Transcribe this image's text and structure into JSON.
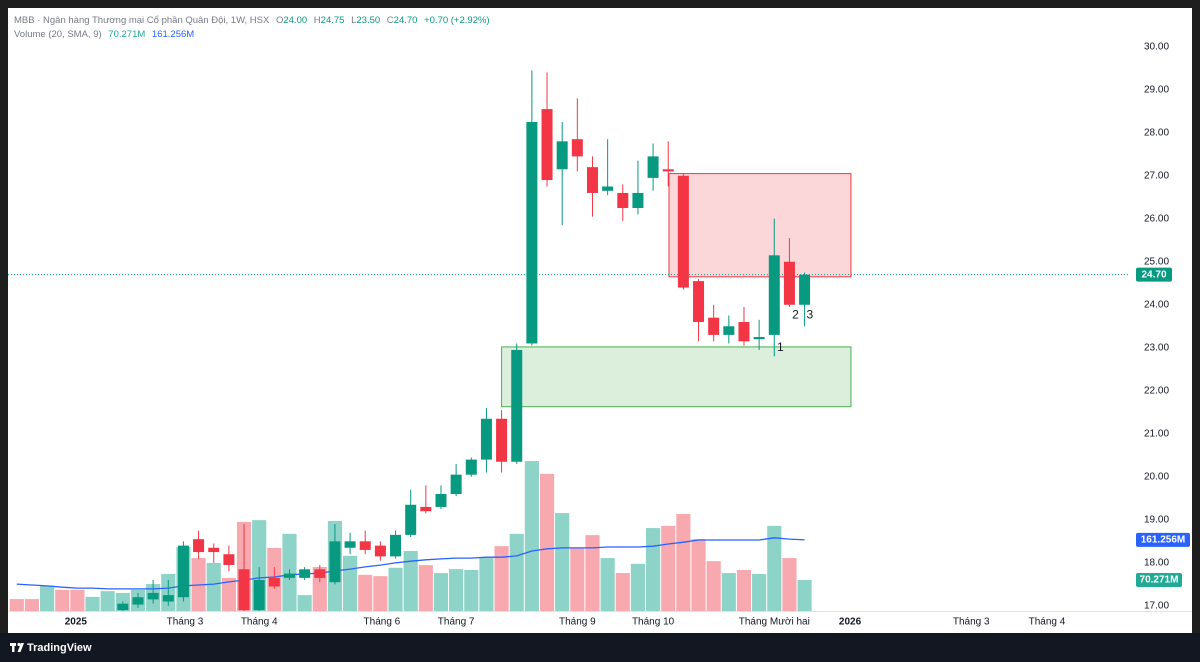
{
  "header": {
    "title": "MBB · Ngân hàng Thương mại Cổ phần Quân Đội, 1W, HSX",
    "ohlc": [
      {
        "key": "O",
        "value": "24.00"
      },
      {
        "key": "H",
        "value": "24.75"
      },
      {
        "key": "L",
        "value": "23.50"
      },
      {
        "key": "C",
        "value": "24.70"
      }
    ],
    "change": "+0.70 (+2.92%)",
    "volume_title": "Volume (20, SMA, 9)"
  },
  "chart_data": {
    "type": "candlestick",
    "x": [
      -1,
      0,
      1,
      2,
      3,
      4,
      5,
      6,
      7,
      8,
      9,
      10,
      11,
      12,
      13,
      14,
      15,
      16,
      17,
      18,
      19,
      20,
      21,
      22,
      23,
      24,
      25,
      26,
      27,
      28,
      29,
      30,
      31,
      32,
      33,
      34,
      35,
      36,
      37,
      38,
      39,
      40,
      41,
      42,
      43,
      44,
      45,
      46,
      47,
      48,
      49,
      50,
      51
    ],
    "open": [
      null,
      null,
      null,
      null,
      null,
      null,
      null,
      16.9,
      17.03,
      17.15,
      17.1,
      17.2,
      18.55,
      18.35,
      18.2,
      17.85,
      16.9,
      17.65,
      17.65,
      17.65,
      17.85,
      17.55,
      18.35,
      18.5,
      18.4,
      18.15,
      18.65,
      19.3,
      19.3,
      19.6,
      20.05,
      20.4,
      21.35,
      20.35,
      23.1,
      28.55,
      27.15,
      27.85,
      27.2,
      26.65,
      26.6,
      26.25,
      26.95,
      27.15,
      27.0,
      24.55,
      23.7,
      23.3,
      23.6,
      23.2,
      23.3,
      25.0,
      24.0
    ],
    "high": [
      null,
      null,
      null,
      null,
      null,
      null,
      null,
      17.1,
      17.3,
      17.6,
      17.6,
      18.5,
      18.75,
      18.45,
      18.4,
      18.9,
      17.9,
      17.9,
      17.85,
      17.9,
      17.95,
      18.9,
      18.7,
      18.75,
      18.5,
      18.75,
      19.7,
      19.8,
      19.8,
      20.3,
      20.45,
      21.6,
      21.55,
      23.1,
      29.45,
      29.4,
      28.25,
      28.8,
      27.45,
      27.85,
      26.8,
      27.35,
      27.75,
      27.8,
      27.05,
      24.6,
      24.0,
      23.75,
      23.95,
      23.65,
      26.0,
      25.55,
      24.75
    ],
    "low": [
      null,
      null,
      null,
      null,
      null,
      null,
      null,
      16.85,
      16.95,
      17.05,
      17.0,
      17.1,
      18.1,
      18.0,
      17.8,
      16.8,
      16.8,
      17.4,
      17.6,
      17.6,
      17.55,
      17.5,
      18.2,
      18.2,
      18.05,
      18.1,
      18.6,
      19.15,
      19.25,
      19.55,
      20.0,
      20.1,
      20.1,
      20.3,
      23.05,
      26.75,
      25.85,
      27.1,
      26.05,
      26.55,
      25.95,
      26.1,
      26.65,
      26.75,
      24.35,
      23.15,
      23.15,
      23.1,
      23.05,
      22.95,
      22.8,
      23.95,
      23.5
    ],
    "close": [
      null,
      null,
      null,
      null,
      null,
      null,
      null,
      17.05,
      17.2,
      17.3,
      17.25,
      18.4,
      18.25,
      18.25,
      17.95,
      16.9,
      17.6,
      17.45,
      17.75,
      17.85,
      17.65,
      18.5,
      18.5,
      18.3,
      18.15,
      18.65,
      19.35,
      19.2,
      19.6,
      20.05,
      20.4,
      21.35,
      20.35,
      22.95,
      28.25,
      26.9,
      27.8,
      27.45,
      26.6,
      26.75,
      26.25,
      26.6,
      27.45,
      27.1,
      24.4,
      23.6,
      23.3,
      23.5,
      23.15,
      23.25,
      25.15,
      24.0,
      24.7
    ],
    "price_label": "24.70",
    "up_color": "#089981",
    "down_color": "#f23645",
    "volume": {
      "values": [
        27,
        27,
        57,
        48,
        48,
        32,
        45,
        41,
        48,
        61,
        84,
        145,
        120,
        109,
        75,
        202,
        206,
        143,
        175,
        36,
        100,
        204,
        125,
        82,
        79,
        98,
        136,
        104,
        86,
        95,
        93,
        120,
        147,
        175,
        340,
        311,
        222,
        143,
        172,
        120,
        86,
        107,
        188,
        193,
        220,
        163,
        113,
        86,
        93,
        84,
        193,
        120,
        70.271
      ],
      "colors": [
        "#f7a9af",
        "#f7a9af",
        "#8ed3c7",
        "#f7a9af",
        "#f7a9af",
        "#8ed3c7",
        "#8ed3c7",
        "#8ed3c7",
        "#8ed3c7",
        "#8ed3c7",
        "#8ed3c7",
        "#8ed3c7",
        "#f7a9af",
        "#8ed3c7",
        "#f7a9af",
        "#f7a9af",
        "#8ed3c7",
        "#f7a9af",
        "#8ed3c7",
        "#8ed3c7",
        "#f7a9af",
        "#8ed3c7",
        "#8ed3c7",
        "#f7a9af",
        "#f7a9af",
        "#8ed3c7",
        "#8ed3c7",
        "#f7a9af",
        "#8ed3c7",
        "#8ed3c7",
        "#8ed3c7",
        "#8ed3c7",
        "#f7a9af",
        "#8ed3c7",
        "#8ed3c7",
        "#f7a9af",
        "#8ed3c7",
        "#f7a9af",
        "#f7a9af",
        "#8ed3c7",
        "#f7a9af",
        "#8ed3c7",
        "#8ed3c7",
        "#f7a9af",
        "#f7a9af",
        "#f7a9af",
        "#f7a9af",
        "#8ed3c7",
        "#f7a9af",
        "#8ed3c7",
        "#8ed3c7",
        "#f7a9af",
        "#8ed3c7"
      ],
      "value_label": "70.271M",
      "label_color": "#22ab94",
      "vlim": [
        0,
        1367
      ]
    },
    "sma": {
      "values": [
        61,
        59,
        57,
        54,
        52,
        52,
        50,
        50,
        50,
        50,
        52,
        57,
        59,
        61,
        66,
        70,
        75,
        77,
        82,
        84,
        86,
        91,
        95,
        100,
        104,
        109,
        113,
        116,
        118,
        120,
        120,
        122,
        122,
        125,
        136,
        141,
        143,
        143,
        143,
        145,
        145,
        145,
        147,
        152,
        156,
        161,
        161,
        161,
        161,
        161,
        166,
        163,
        161.256
      ],
      "color": "#2962ff",
      "value_label": "161.256M"
    },
    "zones": [
      {
        "x": [
          31,
          54.06
        ],
        "y": [
          21.63,
          23.02
        ],
        "color": "#4caf50"
      },
      {
        "x": [
          42.05,
          54.06
        ],
        "y": [
          24.65,
          27.05
        ],
        "color": "#f23645"
      }
    ],
    "annotations": [
      {
        "text": "1",
        "x": 49.4,
        "y": 23.0
      },
      {
        "text": "2",
        "x": 50.4,
        "y": 23.75
      },
      {
        "text": "3",
        "x": 51.35,
        "y": 23.75
      }
    ],
    "xlim": [
      -1.58,
      72.48
    ],
    "xticks": [
      {
        "value": 2.9,
        "label": "2025"
      },
      {
        "value": 10.1,
        "label": "Tháng 3"
      },
      {
        "value": 15,
        "label": "Tháng 4"
      },
      {
        "value": 23.1,
        "label": "Tháng 6"
      },
      {
        "value": 28,
        "label": "Tháng 7"
      },
      {
        "value": 36,
        "label": "Tháng 9"
      },
      {
        "value": 41,
        "label": "Tháng 10"
      },
      {
        "value": 49,
        "label": "Tháng Mười hai"
      },
      {
        "value": 54,
        "label": "2026"
      },
      {
        "value": 62,
        "label": "Tháng 3"
      },
      {
        "value": 67,
        "label": "Tháng 4"
      }
    ],
    "ylim": [
      16.88,
      30.9
    ],
    "yticks": [
      {
        "value": 17,
        "label": "17.00"
      },
      {
        "value": 18,
        "label": "18.00"
      },
      {
        "value": 19,
        "label": "19.00"
      },
      {
        "value": 20,
        "label": "20.00"
      },
      {
        "value": 21,
        "label": "21.00"
      },
      {
        "value": 22,
        "label": "22.00"
      },
      {
        "value": 23,
        "label": "23.00"
      },
      {
        "value": 24,
        "label": "24.00"
      },
      {
        "value": 25,
        "label": "25.00"
      },
      {
        "value": 26,
        "label": "26.00"
      },
      {
        "value": 27,
        "label": "27.00"
      },
      {
        "value": 28,
        "label": "28.00"
      },
      {
        "value": 29,
        "label": "29.00"
      },
      {
        "value": 30,
        "label": "30.00"
      }
    ],
    "grid": false
  },
  "footer": {
    "brand": "TradingView"
  }
}
